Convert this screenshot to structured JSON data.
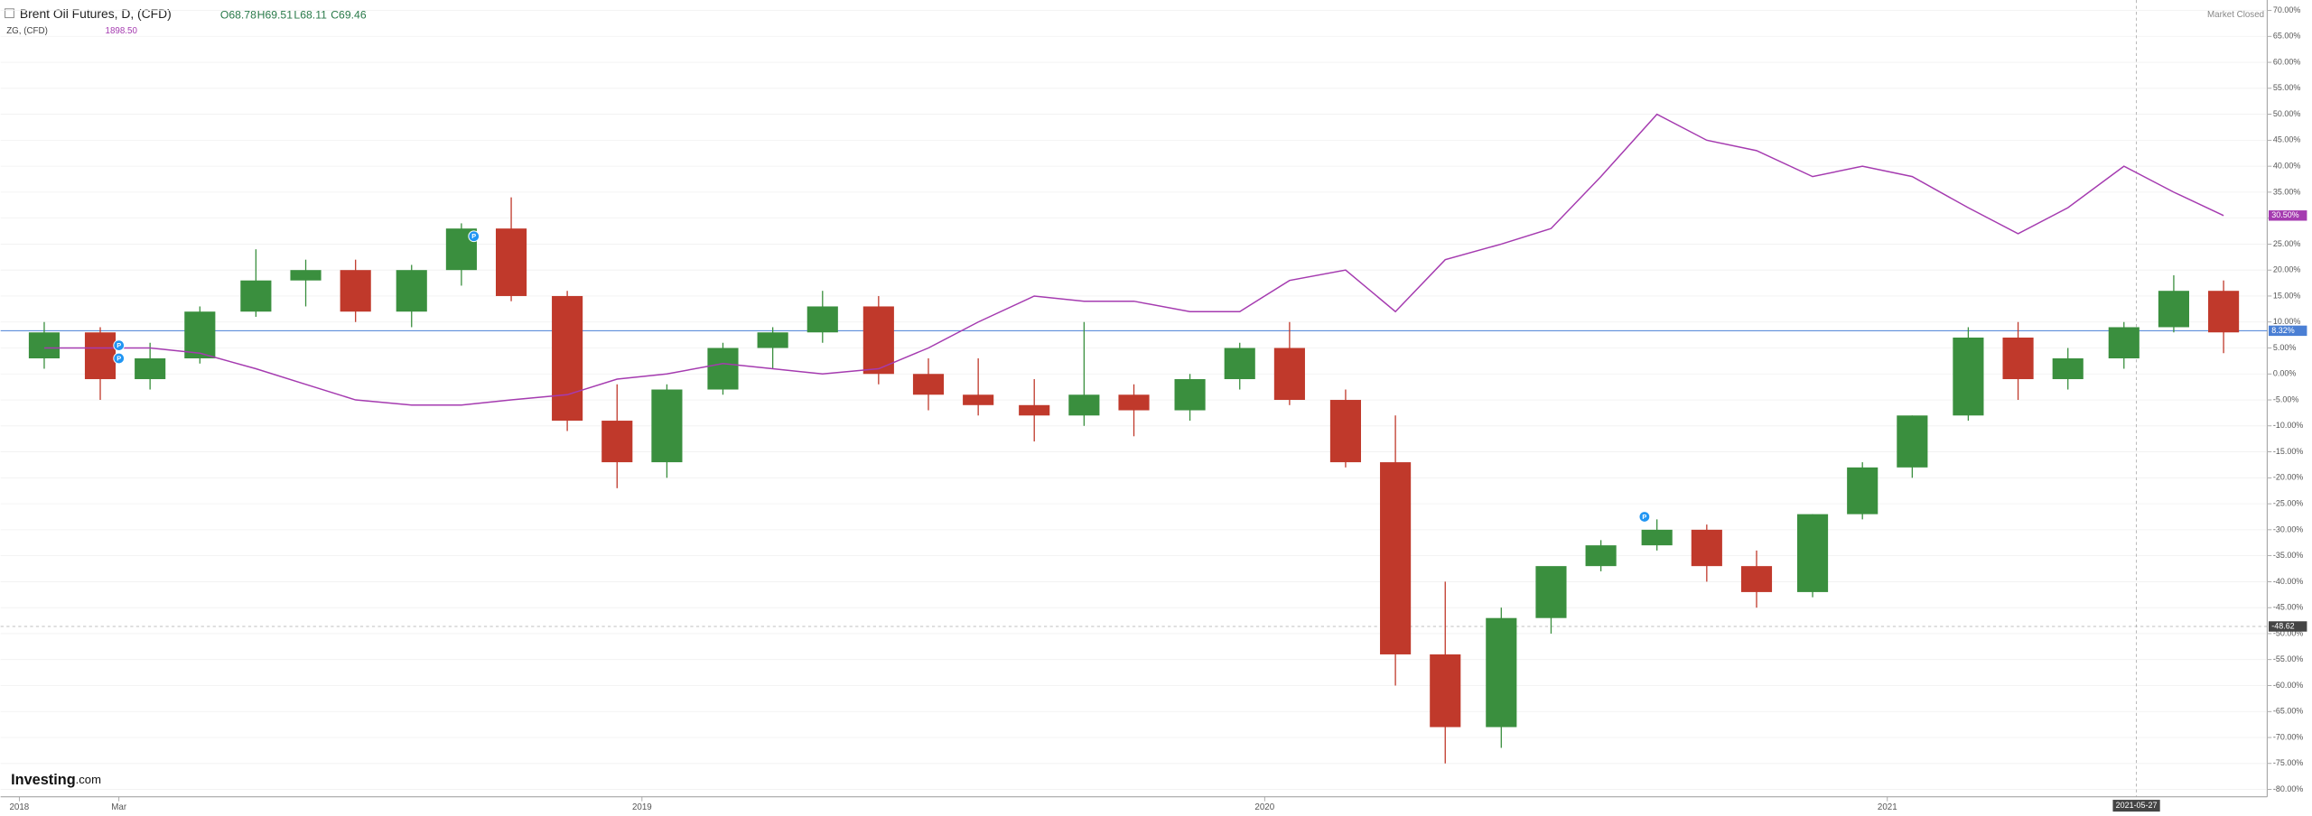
{
  "chart_data": {
    "type": "candlestick",
    "title": "Brent Oil Futures, D, (CFD)",
    "ohlc_labels": [
      "O68.78",
      "H69.51",
      "L68.11",
      "C69.46"
    ],
    "compare_title": "ZG, (CFD)",
    "compare_value": "1898.50",
    "status": "Market Closed",
    "brand": [
      "Investing",
      ".com"
    ],
    "xlim": [
      2017.97,
      2021.61
    ],
    "xticks": [
      {
        "value": 2018,
        "label": "2018"
      },
      {
        "value": 2018.16,
        "label": "Mar"
      },
      2019,
      2020,
      2021
    ],
    "ylim": [
      -81.43,
      72
    ],
    "yticks": [
      {
        "value": 70,
        "label": "70.00%"
      },
      {
        "value": 65,
        "label": "65.00%"
      },
      {
        "value": 60,
        "label": "60.00%"
      },
      {
        "value": 55,
        "label": "55.00%"
      },
      {
        "value": 50,
        "label": "50.00%"
      },
      {
        "value": 45,
        "label": "45.00%"
      },
      {
        "value": 40,
        "label": "40.00%"
      },
      {
        "value": 35,
        "label": "35.00%"
      },
      {
        "value": 30,
        "label": "30.00%"
      },
      {
        "value": 25,
        "label": "25.00%"
      },
      {
        "value": 20,
        "label": "20.00%"
      },
      {
        "value": 15,
        "label": "15.00%"
      },
      {
        "value": 10,
        "label": "10.00%"
      },
      {
        "value": 5,
        "label": "5.00%"
      },
      {
        "value": 0,
        "label": "0.00%"
      },
      {
        "value": -5,
        "label": "-5.00%"
      },
      {
        "value": -10,
        "label": "-10.00%"
      },
      {
        "value": -15,
        "label": "-15.00%"
      },
      {
        "value": -20,
        "label": "-20.00%"
      },
      {
        "value": -25,
        "label": "-25.00%"
      },
      {
        "value": -30,
        "label": "-30.00%"
      },
      {
        "value": -35,
        "label": "-35.00%"
      },
      {
        "value": -40,
        "label": "-40.00%"
      },
      {
        "value": -45,
        "label": "-45.00%"
      },
      {
        "value": -50,
        "label": "-50.00%"
      },
      {
        "value": -55,
        "label": "-55.00%"
      },
      {
        "value": -60,
        "label": "-60.00%"
      },
      {
        "value": -65,
        "label": "-65.00%"
      },
      {
        "value": -70,
        "label": "-70.00%"
      },
      {
        "value": -75,
        "label": "-75.00%"
      },
      {
        "value": -80,
        "label": "-80.00%"
      }
    ],
    "x": [
      2018.04,
      2018.13,
      2018.21,
      2018.29,
      2018.38,
      2018.46,
      2018.54,
      2018.63,
      2018.71,
      2018.79,
      2018.88,
      2018.96,
      2019.04,
      2019.13,
      2019.21,
      2019.29,
      2019.38,
      2019.46,
      2019.54,
      2019.63,
      2019.71,
      2019.79,
      2019.88,
      2019.96,
      2020.04,
      2020.13,
      2020.21,
      2020.29,
      2020.38,
      2020.46,
      2020.54,
      2020.63,
      2020.71,
      2020.79,
      2020.88,
      2020.96,
      2021.04,
      2021.13,
      2021.21,
      2021.29,
      2021.38,
      2021.46,
      2021.54
    ],
    "open": [
      3,
      8,
      -1,
      3,
      12,
      18,
      20,
      12,
      20,
      28,
      15,
      -9,
      -17,
      -3,
      5,
      8,
      13,
      0,
      -4,
      -6,
      -8,
      -4,
      -7,
      -1,
      5,
      -5,
      -17,
      -54,
      -68,
      -47,
      -37,
      -33,
      -30,
      -37,
      -42,
      -27,
      -18,
      -8,
      7,
      -1,
      3,
      9,
      16
    ],
    "high": [
      10,
      9,
      6,
      13,
      24,
      22,
      22,
      21,
      29,
      34,
      16,
      -2,
      -2,
      6,
      9,
      16,
      15,
      3,
      3,
      -1,
      10,
      -2,
      0,
      6,
      10,
      -3,
      -8,
      -40,
      -45,
      -38,
      -32,
      -28,
      -29,
      -34,
      -27,
      -17,
      -8,
      9,
      10,
      5,
      10,
      19,
      18
    ],
    "low": [
      1,
      -5,
      -3,
      2,
      11,
      13,
      10,
      9,
      17,
      14,
      -11,
      -22,
      -20,
      -4,
      1,
      6,
      -2,
      -7,
      -8,
      -13,
      -10,
      -12,
      -9,
      -3,
      -6,
      -18,
      -60,
      -75,
      -72,
      -50,
      -38,
      -34,
      -40,
      -45,
      -43,
      -28,
      -20,
      -9,
      -5,
      -3,
      1,
      8,
      4
    ],
    "close": [
      8,
      -1,
      3,
      12,
      18,
      20,
      12,
      20,
      28,
      15,
      -9,
      -17,
      -3,
      5,
      8,
      13,
      0,
      -4,
      -6,
      -8,
      -4,
      -7,
      -1,
      5,
      -5,
      -17,
      -54,
      -68,
      -47,
      -37,
      -33,
      -30,
      -37,
      -42,
      -27,
      -18,
      -8,
      7,
      -1,
      3,
      9,
      16,
      8
    ],
    "up_color": "#3a8f3e",
    "down_color": "#c0392b",
    "series": [
      {
        "name": "ZG, (CFD)",
        "color": "#a53bb0",
        "values": [
          5,
          5,
          5,
          4,
          1,
          -2,
          -5,
          -6,
          -6,
          -5,
          -4,
          -1,
          0,
          2,
          1,
          0,
          1,
          5,
          10,
          15,
          14,
          14,
          12,
          12,
          18,
          20,
          12,
          22,
          25,
          28,
          38,
          50,
          45,
          43,
          38,
          40,
          38,
          32,
          27,
          32,
          40,
          35,
          30.5
        ]
      }
    ],
    "price_line": {
      "value": 8.32,
      "label": "8.32%",
      "color": "#4a7fd4"
    },
    "compare_tag": {
      "value": 30.5,
      "label": "30.50%"
    },
    "crosshair_y": {
      "value": -48.62,
      "label": "-48.62"
    },
    "crosshair_x": {
      "value": 2021.4,
      "label": "2021-05-27"
    },
    "events": [
      {
        "x": 2018.16,
        "y": 5.5,
        "label": "P"
      },
      {
        "x": 2018.16,
        "y": 3,
        "label": "P"
      },
      {
        "x": 2018.73,
        "y": 26.5,
        "label": "P"
      },
      {
        "x": 2020.61,
        "y": -27.5,
        "label": "P"
      }
    ]
  }
}
